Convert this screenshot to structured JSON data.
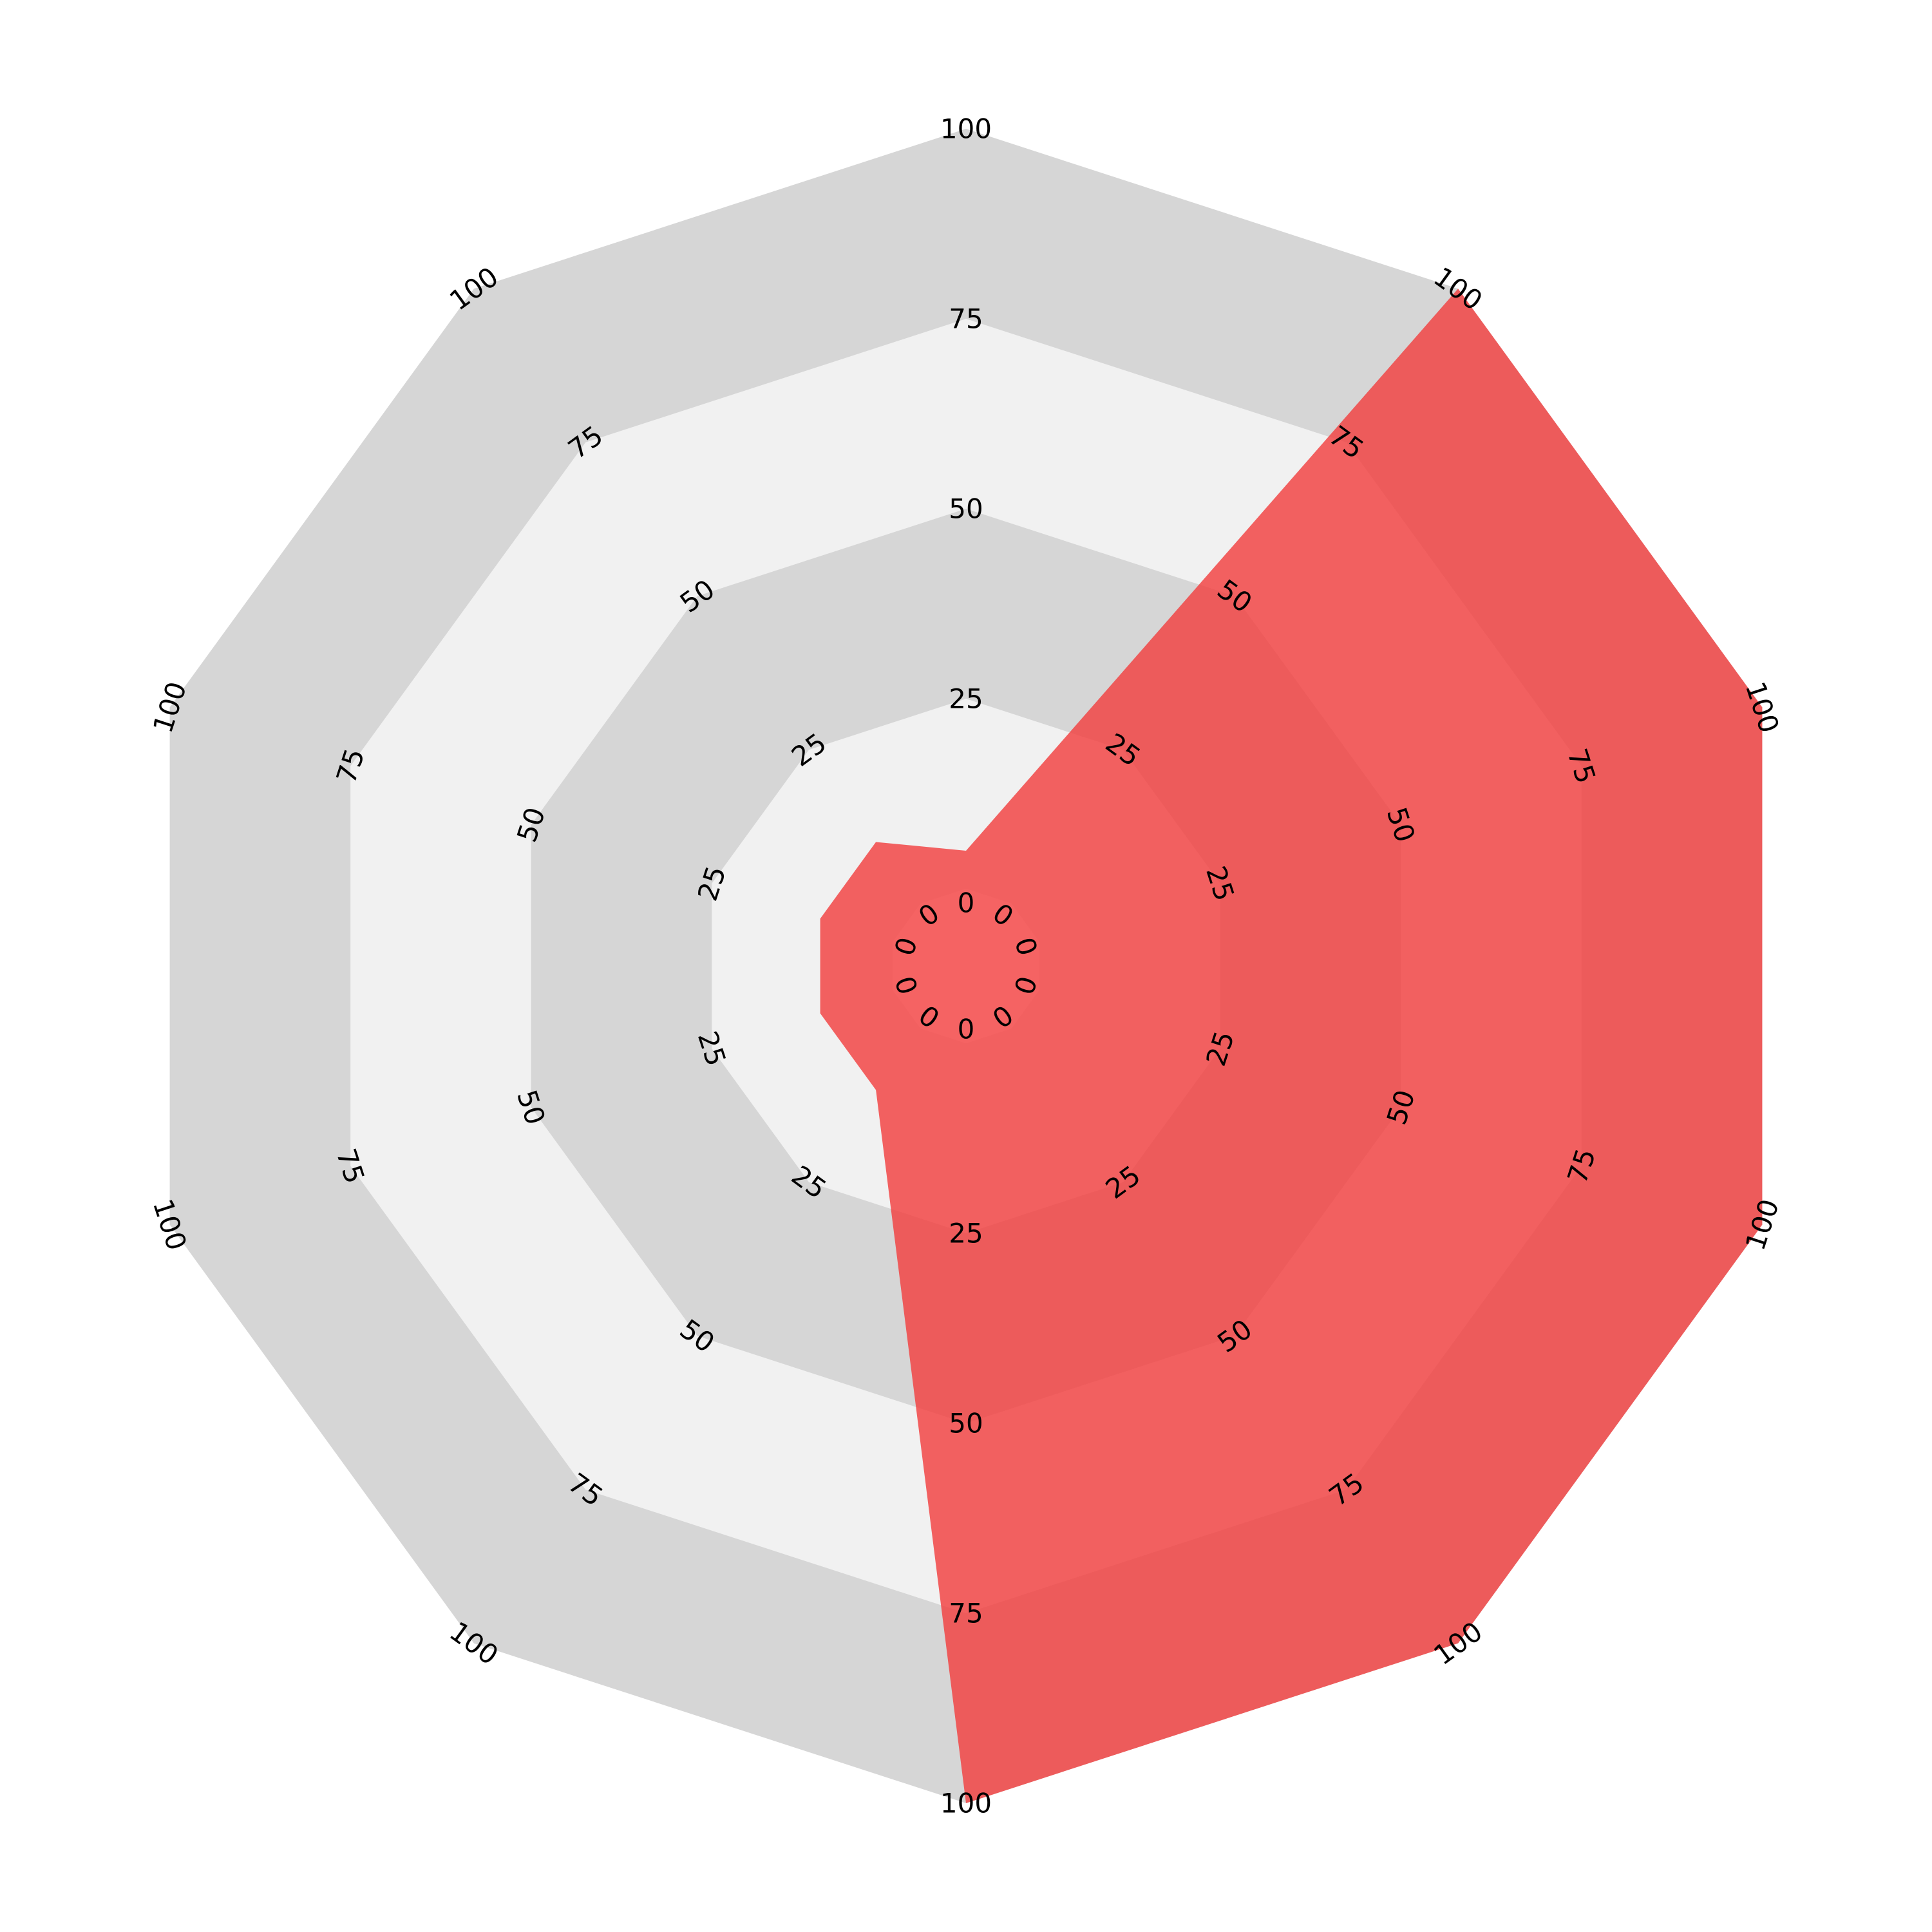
{
  "chart_data": {
    "type": "radar",
    "axis_count": 10,
    "range": [
      0,
      100
    ],
    "ring_ticks": [
      0,
      25,
      50,
      75,
      100
    ],
    "tick_labels": [
      "0",
      "25",
      "50",
      "75",
      "100"
    ],
    "values": [
      5,
      10,
      10,
      10,
      10,
      100,
      100,
      100,
      100,
      100
    ],
    "series": [
      {
        "values": [
          5,
          10,
          10,
          10,
          10,
          100,
          100,
          100,
          100,
          100
        ]
      }
    ],
    "grid": true,
    "legend": "none"
  },
  "colors": {
    "ring_dark": "#d6d6d6",
    "ring_light": "#f1f1f1",
    "center": "#ffffff",
    "series_fill": "#f23c3c",
    "series_fill_opacity": 0.8
  }
}
